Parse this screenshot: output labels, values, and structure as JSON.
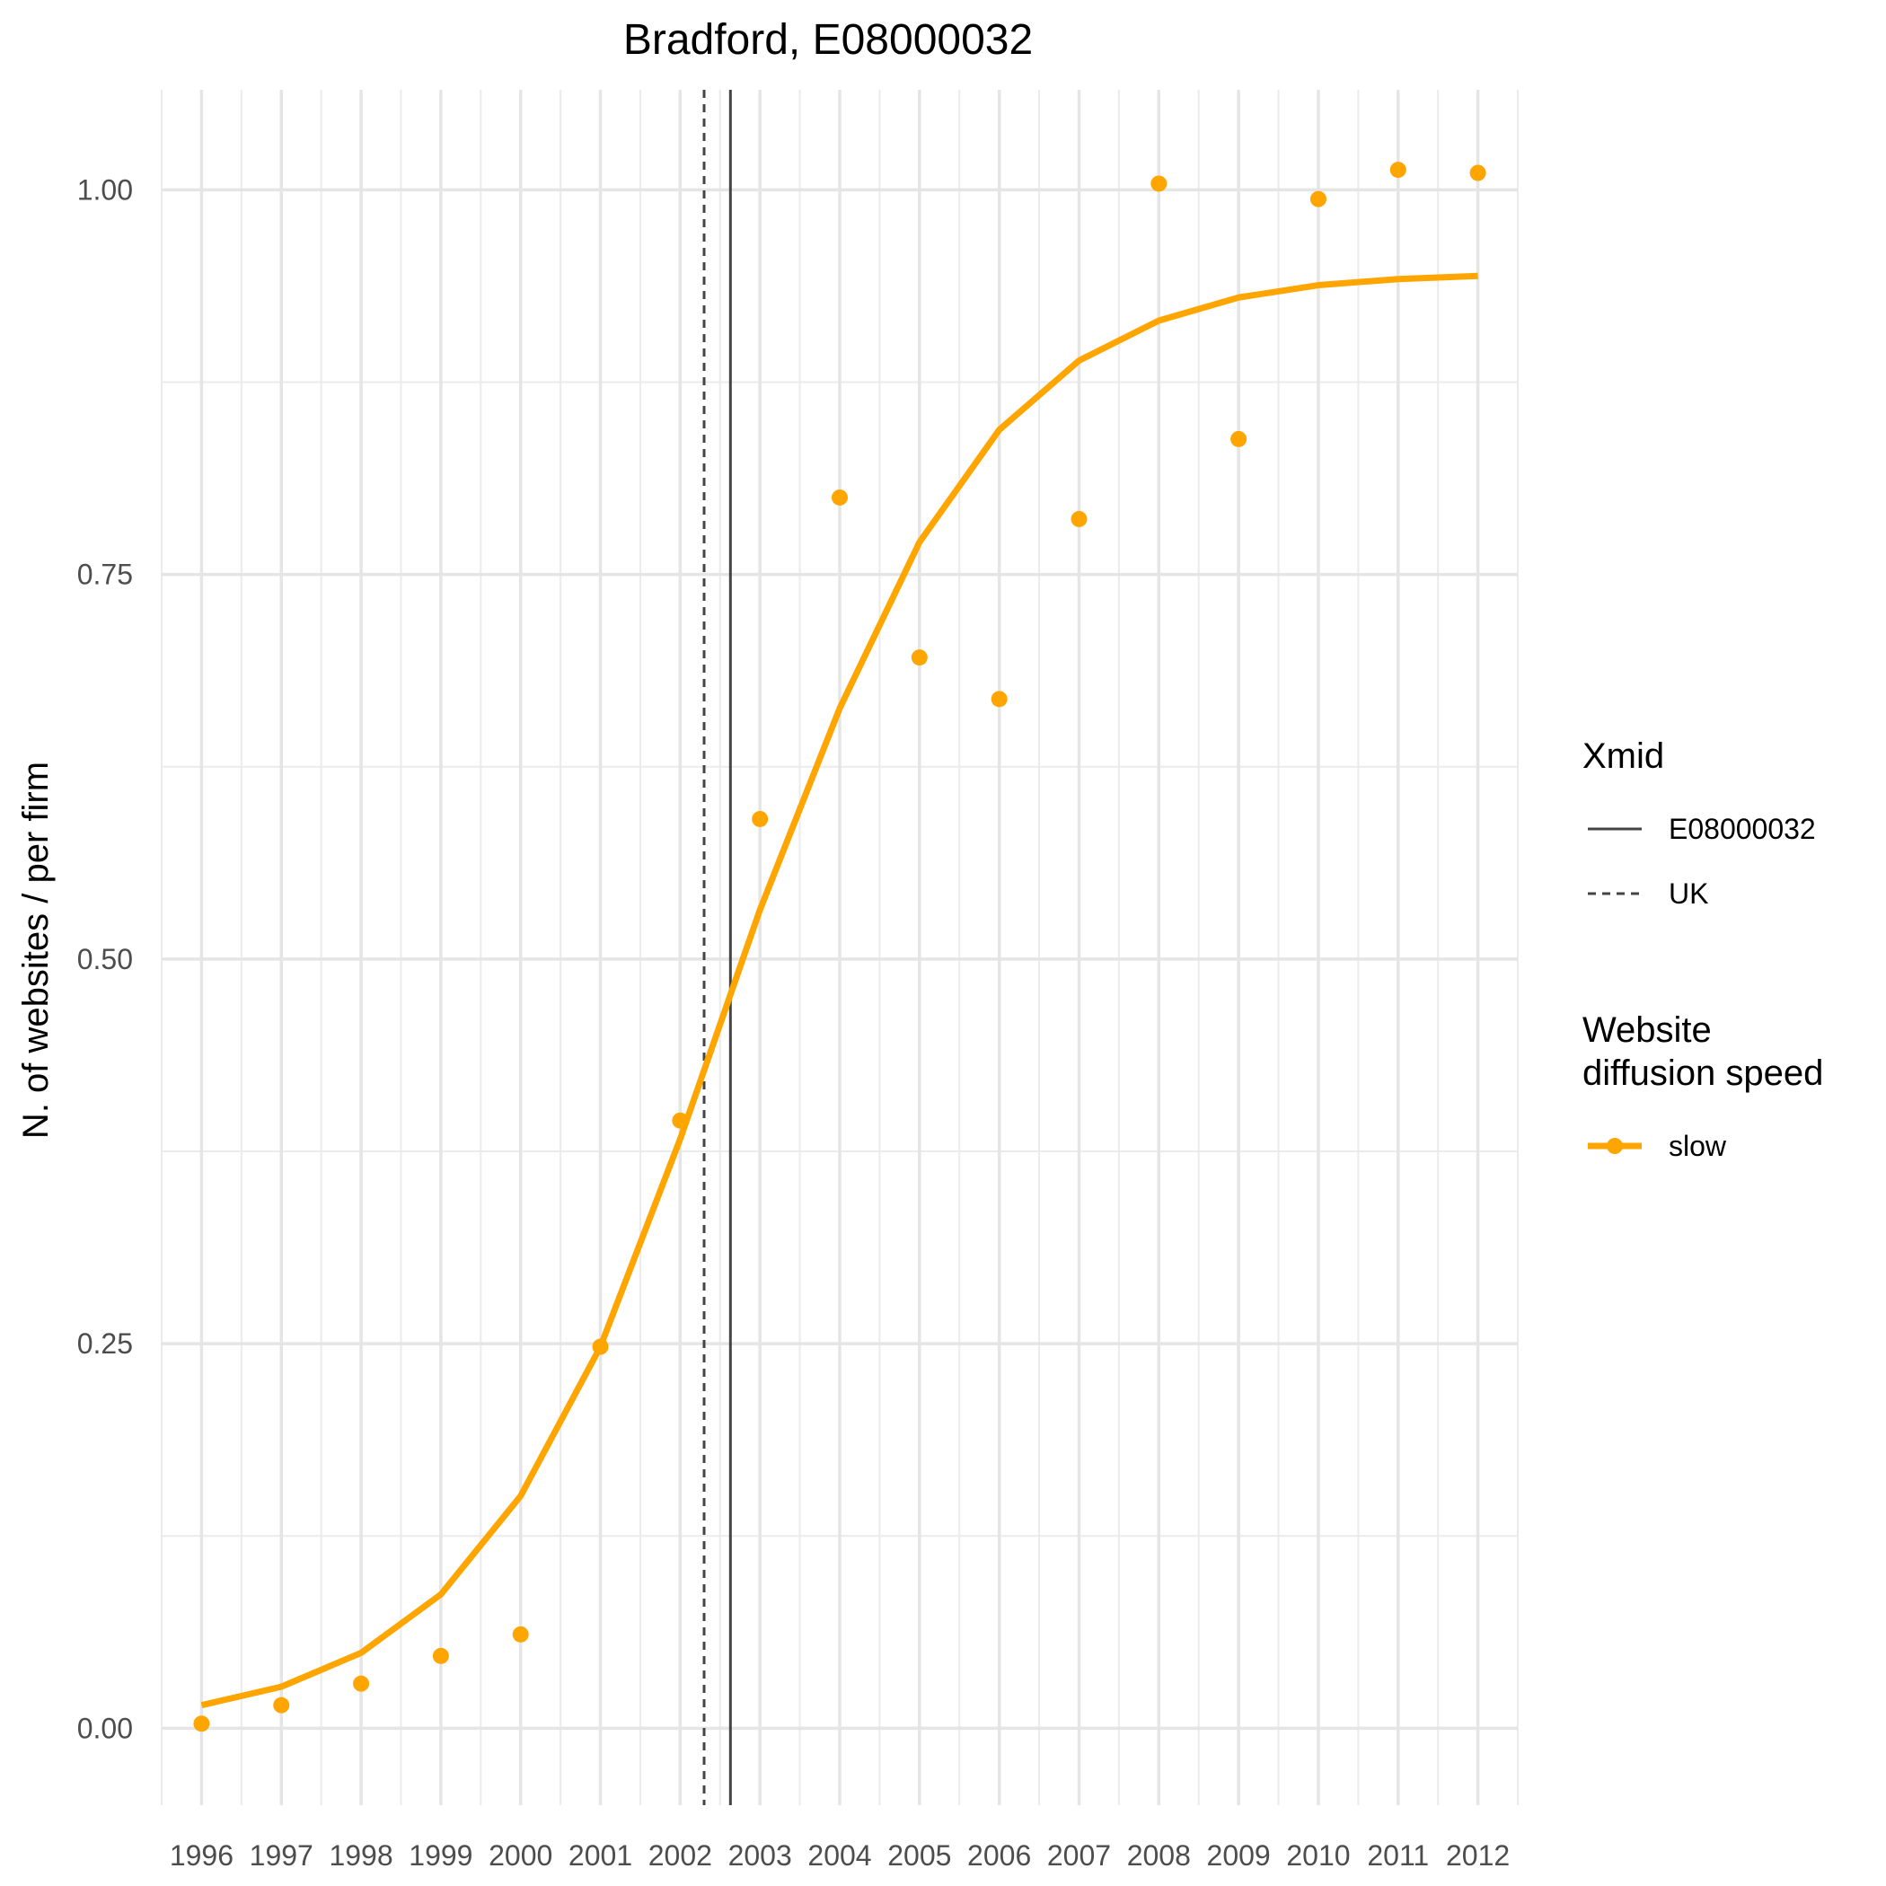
{
  "chart_data": {
    "type": "line",
    "title": "Bradford, E08000032",
    "xlabel": "",
    "ylabel": "N. of websites / per firm",
    "x": [
      1996,
      1997,
      1998,
      1999,
      2000,
      2001,
      2002,
      2003,
      2004,
      2005,
      2006,
      2007,
      2008,
      2009,
      2010,
      2011,
      2012
    ],
    "xlim": [
      1995.5,
      2012.5
    ],
    "ylim": [
      -0.05,
      1.065
    ],
    "yticks": [
      "0.00",
      "0.25",
      "0.50",
      "0.75",
      "1.00"
    ],
    "ytick_values": [
      0,
      0.25,
      0.5,
      0.75,
      1.0
    ],
    "grid": true,
    "series": [
      {
        "name": "slow",
        "kind": "line",
        "color": "#FFA500",
        "values": [
          0.015,
          0.027,
          0.049,
          0.087,
          0.151,
          0.248,
          0.383,
          0.532,
          0.663,
          0.771,
          0.844,
          0.889,
          0.915,
          0.93,
          0.938,
          0.942,
          0.944
        ]
      },
      {
        "name": "slow",
        "kind": "points",
        "color": "#FFA500",
        "values": [
          0.003,
          0.015,
          0.029,
          0.047,
          0.061,
          0.248,
          0.395,
          0.591,
          0.8,
          0.696,
          0.669,
          0.786,
          1.004,
          0.838,
          0.994,
          1.013,
          1.011
        ]
      }
    ],
    "vlines": [
      {
        "name": "E08000032",
        "x": 2002.63,
        "style": "solid",
        "color": "#444444"
      },
      {
        "name": "UK",
        "x": 2002.3,
        "style": "dotted",
        "color": "#444444"
      }
    ],
    "legend": {
      "placement": "right",
      "groups": [
        {
          "title": "Xmid",
          "items": [
            "E08000032",
            "UK"
          ]
        },
        {
          "title": "Website\ndiffusion speed",
          "items": [
            "slow"
          ]
        }
      ]
    }
  }
}
